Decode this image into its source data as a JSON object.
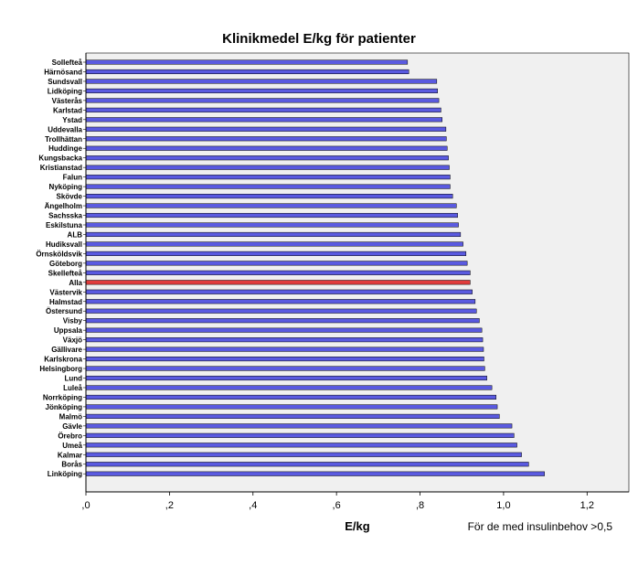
{
  "chart_data": {
    "type": "bar",
    "orientation": "horizontal",
    "title": "Klinikmedel E/kg för patienter",
    "xlabel": "E/kg",
    "ylabel": "",
    "note": "För de med insulinbehov >0,5",
    "xlim": [
      0,
      1.3
    ],
    "xticks": [
      0,
      0.2,
      0.4,
      0.6,
      0.8,
      1.0,
      1.2
    ],
    "xtick_labels": [
      ",0",
      ",2",
      ",4",
      ",6",
      ",8",
      "1,0",
      "1,2"
    ],
    "colors": {
      "bar": "#5a5ae0",
      "highlight": "#e03c3c",
      "plot_bg": "#f0f0f0"
    },
    "highlight_category": "Alla",
    "categories": [
      "Sollefteå",
      "Härnösand",
      "Sundsvall",
      "Lidköping",
      "Västerås",
      "Karlstad",
      "Ystad",
      "Uddevalla",
      "Trollhättan",
      "Huddinge",
      "Kungsbacka",
      "Kristianstad",
      "Falun",
      "Nyköping",
      "Skövde",
      "Ängelholm",
      "Sachsska",
      "Eskilstuna",
      "ALB",
      "Hudiksvall",
      "Örnsköldsvik",
      "Göteborg",
      "Skellefteå",
      "Alla",
      "Västervik",
      "Halmstad",
      "Östersund",
      "Visby",
      "Uppsala",
      "Växjö",
      "Gällivare",
      "Karlskrona",
      "Helsingborg",
      "Lund",
      "Luleå",
      "Norrköping",
      "Jönköping",
      "Malmö",
      "Gävle",
      "Örebro",
      "Umeå",
      "Kalmar",
      "Borås",
      "Linköping"
    ],
    "values": [
      0.77,
      0.773,
      0.84,
      0.842,
      0.845,
      0.85,
      0.853,
      0.862,
      0.863,
      0.865,
      0.868,
      0.87,
      0.872,
      0.872,
      0.878,
      0.887,
      0.89,
      0.892,
      0.897,
      0.903,
      0.91,
      0.913,
      0.92,
      0.92,
      0.925,
      0.932,
      0.935,
      0.942,
      0.948,
      0.95,
      0.952,
      0.953,
      0.955,
      0.96,
      0.972,
      0.982,
      0.985,
      0.99,
      1.02,
      1.025,
      1.032,
      1.043,
      1.06,
      1.098
    ]
  }
}
